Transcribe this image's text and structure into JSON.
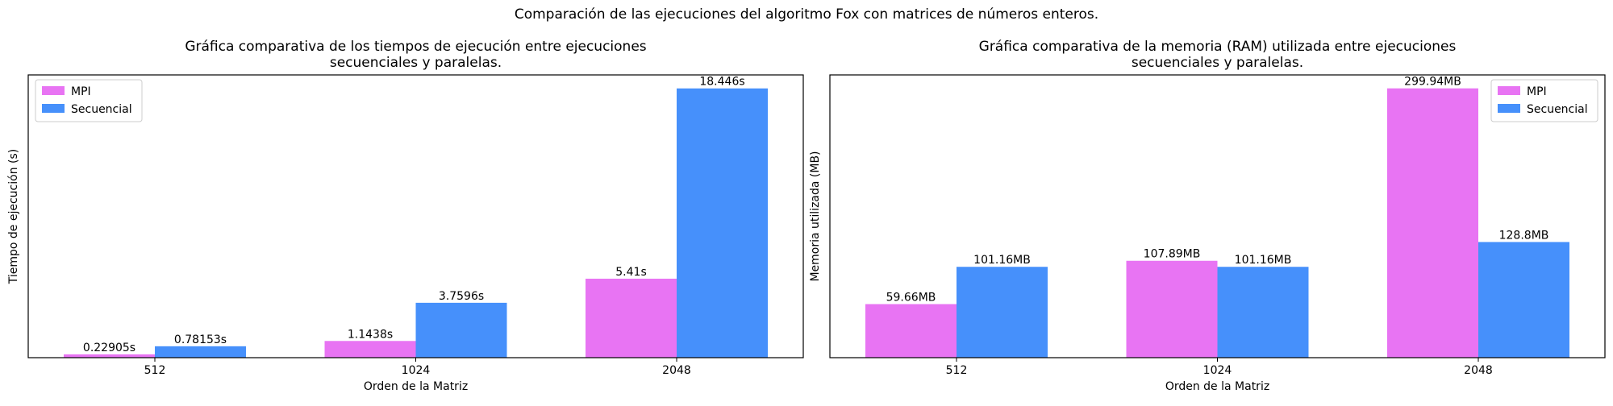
{
  "suptitle": "Comparación de las ejecuciones del algoritmo Fox con matrices de números enteros.",
  "colors": {
    "mpi": "#e874f3",
    "secuencial": "#4690fb"
  },
  "chart_data": [
    {
      "type": "bar",
      "title_lines": [
        "Gráfica comparativa de los tiempos de ejecución entre ejecuciones",
        "secuenciales y paralelas."
      ],
      "xlabel": "Orden de la Matriz",
      "ylabel": "Tiempo de ejecución (s)",
      "categories": [
        "512",
        "1024",
        "2048"
      ],
      "series": [
        {
          "name": "MPI",
          "values": [
            0.22905,
            1.1438,
            5.41
          ],
          "labels": [
            "0.22905s",
            "1.1438s",
            "5.41s"
          ]
        },
        {
          "name": "Secuencial",
          "values": [
            0.78153,
            3.7596,
            18.446
          ],
          "labels": [
            "0.78153s",
            "3.7596s",
            "18.446s"
          ]
        }
      ],
      "ylim": [
        0,
        19.37
      ],
      "yticks_visible": false,
      "legend": "top-left"
    },
    {
      "type": "bar",
      "title_lines": [
        "Gráfica comparativa de la memoria (RAM) utilizada entre ejecuciones",
        "secuenciales y paralelas."
      ],
      "xlabel": "Orden de la Matriz",
      "ylabel": "Memoria utilizada (MB)",
      "categories": [
        "512",
        "1024",
        "2048"
      ],
      "series": [
        {
          "name": "MPI",
          "values": [
            59.66,
            107.89,
            299.94
          ],
          "labels": [
            "59.66MB",
            "107.89MB",
            "299.94MB"
          ]
        },
        {
          "name": "Secuencial",
          "values": [
            101.16,
            101.16,
            128.8
          ],
          "labels": [
            "101.16MB",
            "101.16MB",
            "128.8MB"
          ]
        }
      ],
      "ylim": [
        0,
        314.9
      ],
      "yticks_visible": false,
      "legend": "top-right"
    }
  ]
}
